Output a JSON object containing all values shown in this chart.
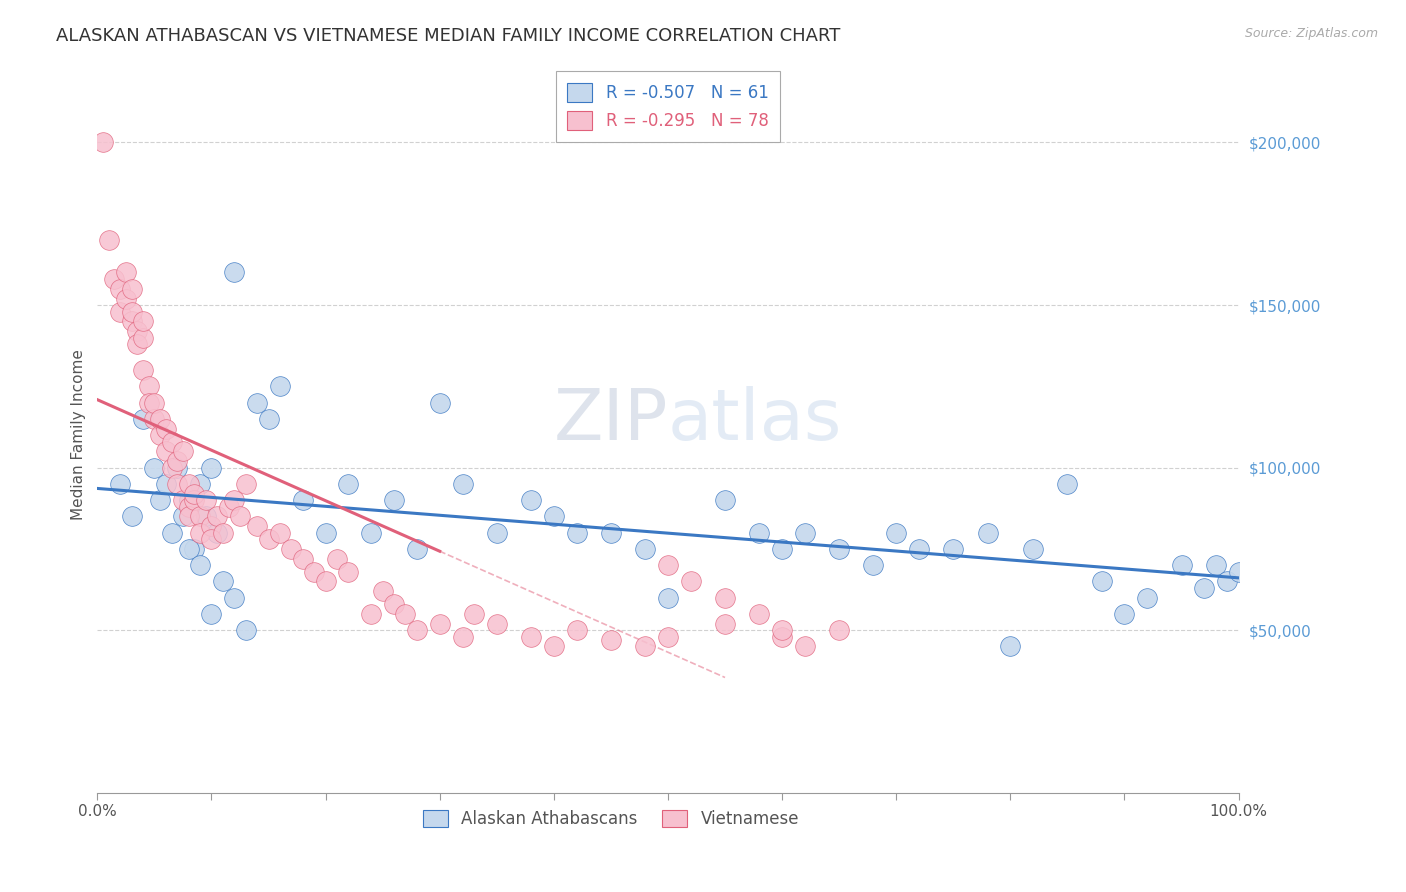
{
  "title": "ALASKAN ATHABASCAN VS VIETNAMESE MEDIAN FAMILY INCOME CORRELATION CHART",
  "source_text": "Source: ZipAtlas.com",
  "ylabel": "Median Family Income",
  "y_tick_labels": [
    "$50,000",
    "$100,000",
    "$150,000",
    "$200,000"
  ],
  "y_tick_values": [
    50000,
    100000,
    150000,
    200000
  ],
  "y_tick_color": "#5b9bd5",
  "xlim": [
    0.0,
    1.0
  ],
  "ylim": [
    0,
    220000
  ],
  "blue_color": "#c5d8ed",
  "pink_color": "#f7c0cf",
  "blue_line_color": "#3b78c3",
  "pink_line_color": "#e0607a",
  "blue_label": "Alaskan Athabascans",
  "pink_label": "Vietnamese",
  "title_fontsize": 13,
  "axis_label_fontsize": 11,
  "tick_fontsize": 11,
  "blue_scatter_x": [
    0.02,
    0.03,
    0.04,
    0.05,
    0.055,
    0.06,
    0.065,
    0.07,
    0.075,
    0.08,
    0.085,
    0.09,
    0.095,
    0.1,
    0.105,
    0.12,
    0.14,
    0.15,
    0.16,
    0.18,
    0.2,
    0.22,
    0.24,
    0.26,
    0.28,
    0.3,
    0.32,
    0.35,
    0.38,
    0.4,
    0.42,
    0.45,
    0.48,
    0.5,
    0.55,
    0.58,
    0.6,
    0.62,
    0.65,
    0.68,
    0.7,
    0.72,
    0.75,
    0.78,
    0.8,
    0.82,
    0.85,
    0.88,
    0.9,
    0.92,
    0.95,
    0.97,
    0.98,
    0.99,
    1.0,
    0.08,
    0.09,
    0.1,
    0.11,
    0.12,
    0.13
  ],
  "blue_scatter_y": [
    95000,
    85000,
    115000,
    100000,
    90000,
    95000,
    80000,
    100000,
    85000,
    90000,
    75000,
    95000,
    85000,
    100000,
    80000,
    160000,
    120000,
    115000,
    125000,
    90000,
    80000,
    95000,
    80000,
    90000,
    75000,
    120000,
    95000,
    80000,
    90000,
    85000,
    80000,
    80000,
    75000,
    60000,
    90000,
    80000,
    75000,
    80000,
    75000,
    70000,
    80000,
    75000,
    75000,
    80000,
    45000,
    75000,
    95000,
    65000,
    55000,
    60000,
    70000,
    63000,
    70000,
    65000,
    68000,
    75000,
    70000,
    55000,
    65000,
    60000,
    50000
  ],
  "pink_scatter_x": [
    0.005,
    0.01,
    0.015,
    0.02,
    0.02,
    0.025,
    0.025,
    0.03,
    0.03,
    0.03,
    0.035,
    0.035,
    0.04,
    0.04,
    0.04,
    0.045,
    0.045,
    0.05,
    0.05,
    0.055,
    0.055,
    0.06,
    0.06,
    0.065,
    0.065,
    0.07,
    0.07,
    0.075,
    0.075,
    0.08,
    0.08,
    0.08,
    0.085,
    0.085,
    0.09,
    0.09,
    0.095,
    0.1,
    0.1,
    0.105,
    0.11,
    0.115,
    0.12,
    0.125,
    0.13,
    0.14,
    0.15,
    0.16,
    0.17,
    0.18,
    0.19,
    0.2,
    0.21,
    0.22,
    0.24,
    0.25,
    0.26,
    0.27,
    0.28,
    0.3,
    0.32,
    0.33,
    0.35,
    0.38,
    0.4,
    0.42,
    0.45,
    0.48,
    0.5,
    0.55,
    0.6,
    0.62,
    0.65,
    0.5,
    0.52,
    0.55,
    0.58,
    0.6
  ],
  "pink_scatter_y": [
    200000,
    170000,
    158000,
    155000,
    148000,
    152000,
    160000,
    145000,
    148000,
    155000,
    142000,
    138000,
    130000,
    140000,
    145000,
    125000,
    120000,
    115000,
    120000,
    110000,
    115000,
    105000,
    112000,
    100000,
    108000,
    95000,
    102000,
    105000,
    90000,
    95000,
    88000,
    85000,
    90000,
    92000,
    85000,
    80000,
    90000,
    82000,
    78000,
    85000,
    80000,
    88000,
    90000,
    85000,
    95000,
    82000,
    78000,
    80000,
    75000,
    72000,
    68000,
    65000,
    72000,
    68000,
    55000,
    62000,
    58000,
    55000,
    50000,
    52000,
    48000,
    55000,
    52000,
    48000,
    45000,
    50000,
    47000,
    45000,
    48000,
    52000,
    48000,
    45000,
    50000,
    70000,
    65000,
    60000,
    55000,
    50000
  ]
}
